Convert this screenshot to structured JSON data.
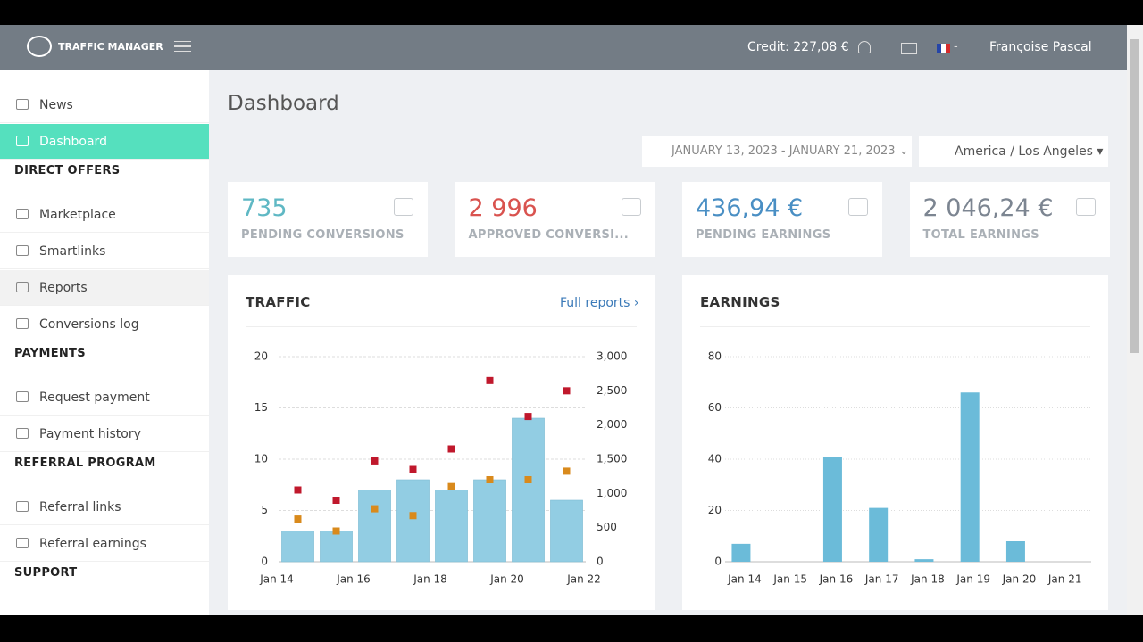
{
  "header": {
    "logo": "TRAFFIC MANAGER",
    "credit": "Credit: 227,08 €",
    "flag_suffix": "-",
    "user": "Françoise Pascal"
  },
  "sidebar": {
    "items": [
      {
        "label": "News"
      },
      {
        "label": "Dashboard"
      },
      {
        "heading": "DIRECT OFFERS"
      },
      {
        "label": "Marketplace"
      },
      {
        "label": "Smartlinks"
      },
      {
        "label": "Reports"
      },
      {
        "label": "Conversions log"
      },
      {
        "heading": "PAYMENTS"
      },
      {
        "label": "Request payment"
      },
      {
        "label": "Payment history"
      },
      {
        "heading": "REFERRAL PROGRAM"
      },
      {
        "label": "Referral links"
      },
      {
        "label": "Referral earnings"
      },
      {
        "heading": "SUPPORT"
      }
    ]
  },
  "page": {
    "title": "Dashboard",
    "date_range": "JANUARY 13, 2023 - JANUARY 21, 2023",
    "timezone": "America / Los Angeles"
  },
  "stats": [
    {
      "value": "735",
      "label": "PENDING CONVERSIONS",
      "color": "#5fb8c4"
    },
    {
      "value": "2 996",
      "label": "APPROVED CONVERSI...",
      "color": "#d9534f"
    },
    {
      "value": "436,94 €",
      "label": "PENDING EARNINGS",
      "color": "#4a8fc4"
    },
    {
      "value": "2 046,24 €",
      "label": "TOTAL EARNINGS",
      "color": "#7c8591"
    }
  ],
  "traffic": {
    "type": "bar-line",
    "title": "TRAFFIC",
    "link": "Full reports",
    "xticks": [
      "Jan 14",
      "Jan 16",
      "Jan 18",
      "Jan 20",
      "Jan 22"
    ],
    "bars": {
      "color": "#92cde3",
      "values": [
        3,
        3,
        7,
        8,
        7,
        8,
        14,
        6
      ]
    },
    "series": [
      {
        "color": "#c0182c",
        "axis": "y2",
        "values": [
          1050,
          900,
          1475,
          1350,
          1650,
          2650,
          2125,
          2500
        ]
      },
      {
        "color": "#d98a1c",
        "axis": "y2",
        "values": [
          625,
          450,
          775,
          675,
          1100,
          1200,
          1200,
          1325
        ]
      }
    ],
    "ylim": [
      0,
      20
    ],
    "yticks": [
      0,
      5,
      10,
      15,
      20
    ],
    "y2lim": [
      0,
      3000
    ],
    "y2ticks": [
      0,
      500,
      {
        "value": 1000,
        "label": "1,000"
      },
      {
        "value": 1500,
        "label": "1,500"
      },
      {
        "value": 2000,
        "label": "2,000"
      },
      {
        "value": 2500,
        "label": "2,500"
      },
      {
        "value": 3000,
        "label": "3,000"
      }
    ],
    "grid": true
  },
  "earnings": {
    "type": "bar",
    "title": "EARNINGS",
    "categories": [
      "Jan 14",
      "Jan 15",
      "Jan 16",
      "Jan 17",
      "Jan 18",
      "Jan 19",
      "Jan 20",
      "Jan 21"
    ],
    "values": [
      7,
      0,
      41,
      21,
      1,
      66,
      8,
      0
    ],
    "color": "#6bbbd9",
    "ylim": [
      0,
      80
    ],
    "yticks": [
      0,
      20,
      40,
      60,
      80
    ],
    "grid": true
  }
}
